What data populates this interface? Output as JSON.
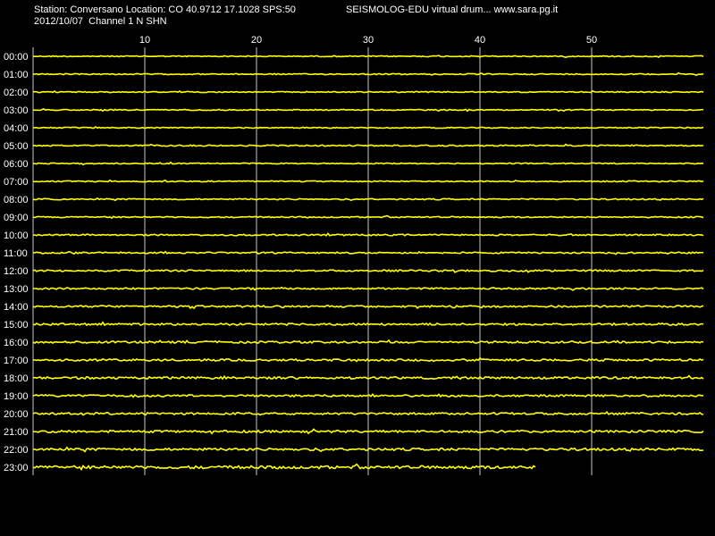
{
  "header": {
    "station_line": "Station: Conversano Location: CO 40.9712 17.1028 SPS:50",
    "date_line": "2012/10/07  Channel 1 N SHN",
    "brand_line": "SEISMOLOG-EDU virtual drum... www.sara.pg.it"
  },
  "colors": {
    "background": "#000000",
    "trace": "#ffff00",
    "grid": "#c8c8c8",
    "text": "#ffffff"
  },
  "chart_data": {
    "type": "line",
    "title": "",
    "xlabel": "",
    "ylabel": "",
    "x_unit": "minutes",
    "xlim": [
      0,
      60
    ],
    "x_ticks": [
      10,
      20,
      30,
      40,
      50
    ],
    "x_tick_labels": [
      "10",
      "20",
      "30",
      "40",
      "50"
    ],
    "grid": true,
    "rows": [
      {
        "label": "00:00",
        "noise": 0.6,
        "end_minute": 60
      },
      {
        "label": "01:00",
        "noise": 0.6,
        "end_minute": 60
      },
      {
        "label": "02:00",
        "noise": 0.6,
        "end_minute": 60
      },
      {
        "label": "03:00",
        "noise": 0.6,
        "end_minute": 60
      },
      {
        "label": "04:00",
        "noise": 0.6,
        "end_minute": 60
      },
      {
        "label": "05:00",
        "noise": 0.7,
        "end_minute": 60
      },
      {
        "label": "06:00",
        "noise": 0.6,
        "end_minute": 60
      },
      {
        "label": "07:00",
        "noise": 0.6,
        "end_minute": 60
      },
      {
        "label": "08:00",
        "noise": 0.7,
        "end_minute": 60
      },
      {
        "label": "09:00",
        "noise": 0.7,
        "end_minute": 60
      },
      {
        "label": "10:00",
        "noise": 0.8,
        "end_minute": 60
      },
      {
        "label": "11:00",
        "noise": 0.8,
        "end_minute": 60
      },
      {
        "label": "12:00",
        "noise": 0.9,
        "end_minute": 60
      },
      {
        "label": "13:00",
        "noise": 0.9,
        "end_minute": 60
      },
      {
        "label": "14:00",
        "noise": 1.0,
        "end_minute": 60
      },
      {
        "label": "15:00",
        "noise": 1.1,
        "end_minute": 60
      },
      {
        "label": "16:00",
        "noise": 1.1,
        "end_minute": 60
      },
      {
        "label": "17:00",
        "noise": 1.1,
        "end_minute": 60
      },
      {
        "label": "18:00",
        "noise": 1.2,
        "end_minute": 60
      },
      {
        "label": "19:00",
        "noise": 1.1,
        "end_minute": 60
      },
      {
        "label": "20:00",
        "noise": 1.1,
        "end_minute": 60
      },
      {
        "label": "21:00",
        "noise": 1.2,
        "end_minute": 60
      },
      {
        "label": "22:00",
        "noise": 1.3,
        "end_minute": 60
      },
      {
        "label": "23:00",
        "noise": 1.6,
        "end_minute": 45
      }
    ]
  }
}
